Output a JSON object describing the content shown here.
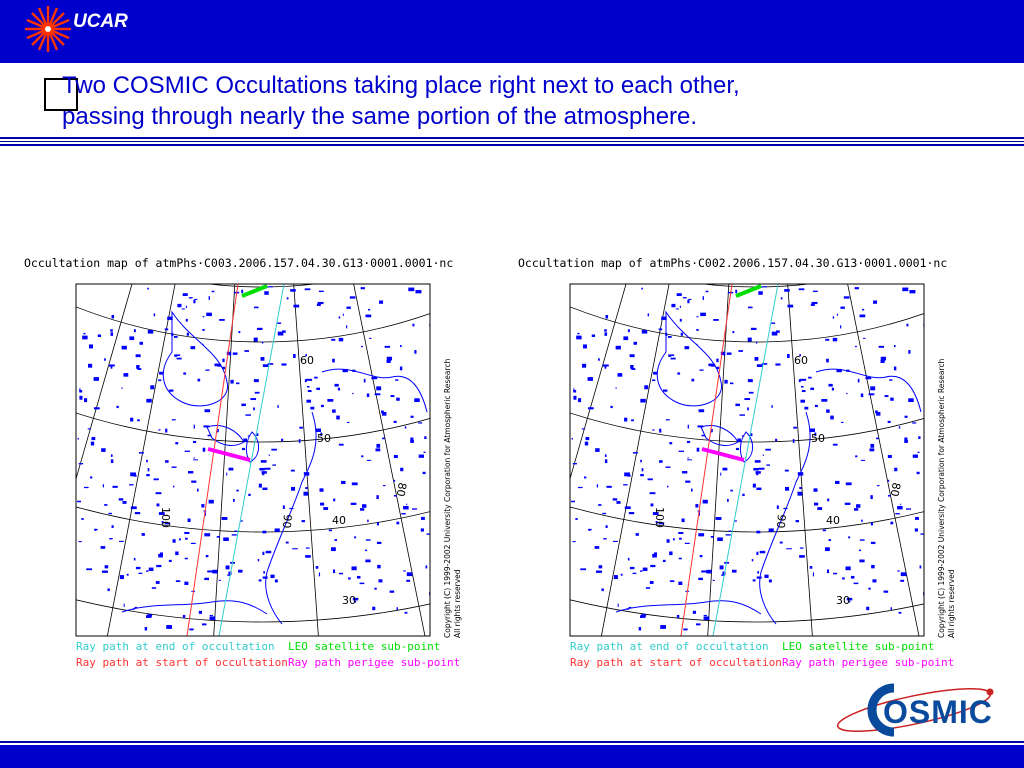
{
  "header": {
    "logo_text": "UCAR"
  },
  "slide": {
    "title_line1": "Two COSMIC Occultations taking place right next to each other,",
    "title_line2": "passing through nearly the same portion of the atmosphere."
  },
  "maps": [
    {
      "title": "Occultation map of atmPhs·C003.2006.157.04.30.G13·0001.0001·nc",
      "copyright": "Copyright (C) 1999-2002 University Corporation for Atmospheric Research",
      "rights": "All rights reserved",
      "lat_labels": [
        "60",
        "50",
        "40",
        "30"
      ],
      "lon_labels": [
        "100",
        "90",
        "80"
      ],
      "legend": {
        "end": "Ray path at end of occultation",
        "start": "Ray path at start of occultation",
        "leo": "LEO satellite sub-point",
        "perigee": "Ray path perigee sub-point"
      }
    },
    {
      "title": "Occultation map of atmPhs·C002.2006.157.04.30.G13·0001.0001·nc",
      "copyright": "Copyright (C) 1999-2002 University Corporation for Atmospheric Research",
      "rights": "All rights reserved",
      "lat_labels": [
        "60",
        "50",
        "40",
        "30"
      ],
      "lon_labels": [
        "100",
        "90",
        "80"
      ],
      "legend": {
        "end": "Ray path at end of occultation",
        "start": "Ray path at start of occultation",
        "leo": "LEO satellite sub-point",
        "perigee": "Ray path perigee sub-point"
      }
    }
  ],
  "footer": {
    "logo_text": "OSMIC"
  },
  "colors": {
    "brand_blue": "#0000cc",
    "coast_blue": "#0000ff",
    "end_ray": "#33cccc",
    "start_ray": "#ff3333",
    "leo": "#00dd00",
    "perigee": "#ff00ff",
    "grid": "#000000"
  }
}
